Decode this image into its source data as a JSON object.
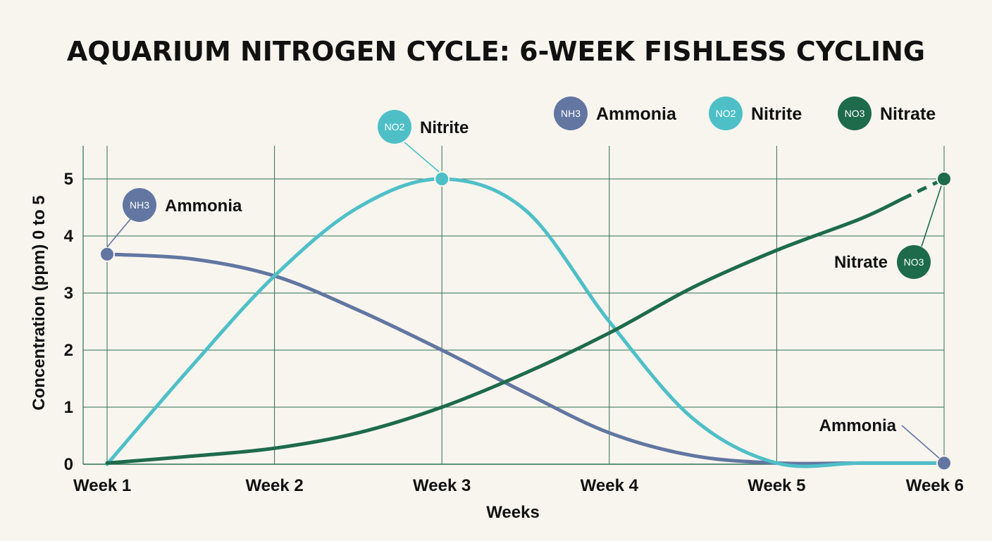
{
  "chart_data": {
    "type": "line",
    "title": "AQUARIUM NITROGEN CYCLE: 6-WEEK FISHLESS CYCLING",
    "xlabel": "Weeks",
    "ylabel": "Concentration (ppm) 0 to 5",
    "categories": [
      "Week 1",
      "Week 2",
      "Week 3",
      "Week 4",
      "Week 5",
      "Week 6"
    ],
    "x": [
      1,
      2,
      3,
      4,
      5,
      6
    ],
    "ylim": [
      0,
      5
    ],
    "yticks": [
      "0",
      "1",
      "2",
      "3",
      "4",
      "5"
    ],
    "grid": true,
    "legend_position": "top-right",
    "series": [
      {
        "key": "ammonia",
        "name": "Ammonia",
        "badge": "NH3",
        "color": "#6276a1",
        "curve": [
          [
            1,
            3.68
          ],
          [
            1.5,
            3.6
          ],
          [
            2,
            3.3
          ],
          [
            2.5,
            2.7
          ],
          [
            3,
            2.0
          ],
          [
            3.5,
            1.25
          ],
          [
            4,
            0.55
          ],
          [
            4.5,
            0.15
          ],
          [
            5,
            0.02
          ],
          [
            5.5,
            0.02
          ],
          [
            6,
            0.02
          ]
        ],
        "markers": [
          [
            1,
            3.68
          ],
          [
            6,
            0.02
          ]
        ]
      },
      {
        "key": "nitrite",
        "name": "Nitrite",
        "badge": "NO2",
        "color": "#4fbfc7",
        "curve": [
          [
            1,
            0
          ],
          [
            1.5,
            1.7
          ],
          [
            2,
            3.3
          ],
          [
            2.5,
            4.5
          ],
          [
            3,
            5.0
          ],
          [
            3.5,
            4.45
          ],
          [
            4,
            2.5
          ],
          [
            4.5,
            0.8
          ],
          [
            5,
            0.02
          ],
          [
            5.5,
            0.02
          ],
          [
            6,
            0.02
          ]
        ],
        "markers": [
          [
            3,
            5.0
          ]
        ]
      },
      {
        "key": "nitrate",
        "name": "Nitrate",
        "badge": "NO3",
        "color": "#1e6b4c",
        "curve": [
          [
            1,
            0.02
          ],
          [
            1.5,
            0.14
          ],
          [
            2,
            0.28
          ],
          [
            2.5,
            0.55
          ],
          [
            3,
            1.0
          ],
          [
            3.5,
            1.6
          ],
          [
            4,
            2.3
          ],
          [
            4.5,
            3.1
          ],
          [
            5,
            3.75
          ],
          [
            5.5,
            4.3
          ],
          [
            5.75,
            4.65
          ]
        ],
        "dashed": [
          [
            5.75,
            4.65
          ],
          [
            6,
            5.0
          ]
        ],
        "markers": [
          [
            6,
            5.0
          ]
        ]
      }
    ],
    "legend": [
      {
        "badge": "NH3",
        "label": "Ammonia",
        "color": "#6276a1"
      },
      {
        "badge": "NO2",
        "label": "Nitrite",
        "color": "#4fbfc7"
      },
      {
        "badge": "NO3",
        "label": "Nitrate",
        "color": "#1e6b4c"
      }
    ],
    "annotations": [
      {
        "series": "ammonia",
        "text": "Ammonia",
        "badge": "NH3",
        "color": "#6276a1",
        "point": [
          1,
          3.68
        ]
      },
      {
        "series": "nitrite",
        "text": "Nitrite",
        "badge": "NO2",
        "color": "#4fbfc7",
        "point": [
          3,
          5.0
        ]
      },
      {
        "series": "nitrate",
        "text": "Nitrate",
        "badge": "NO3",
        "color": "#1e6b4c",
        "point": [
          6,
          5.0
        ]
      },
      {
        "series": "ammonia",
        "text": "Ammonia",
        "badge": "",
        "color": "#6276a1",
        "point": [
          6,
          0.02
        ]
      }
    ]
  }
}
